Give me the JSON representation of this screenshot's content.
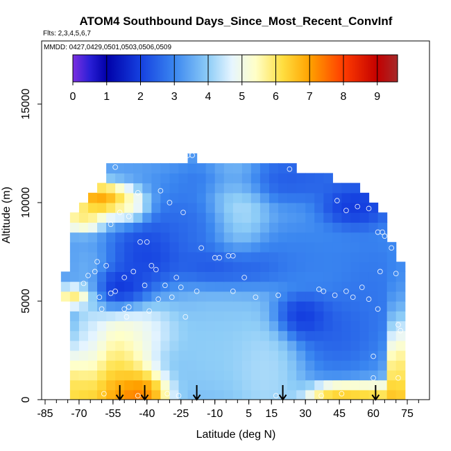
{
  "chart_data": {
    "type": "heatmap",
    "title": "ATOM4 Southbound Days_Since_Most_Recent_ConvInf",
    "flights_label": "Flts: 2,3,4,5,6,7",
    "dates_label": "MMDD: 0427,0429,0501,0503,0506,0509",
    "xlabel": "Latitude (deg N)",
    "ylabel": "Altitude (m)",
    "xlim": [
      -88,
      82
    ],
    "ylim": [
      0,
      17500
    ],
    "x_ticks": [
      -85,
      -70,
      -55,
      -40,
      -25,
      -10,
      5,
      15,
      30,
      45,
      60,
      75
    ],
    "x_tick_labels": [
      "-85",
      "-70",
      "-55",
      "-40",
      "-25",
      "-10",
      "5",
      "15",
      "30",
      "45",
      "60",
      "75"
    ],
    "x_minor_step": 5,
    "y_ticks": [
      0,
      5000,
      10000,
      15000
    ],
    "y_tick_labels": [
      "0",
      "5000",
      "10000",
      "15000"
    ],
    "colorbar": {
      "range": [
        0,
        9.6
      ],
      "ticks": [
        0,
        1,
        2,
        3,
        4,
        5,
        6,
        7,
        8,
        9
      ],
      "tick_labels": [
        "0",
        "1",
        "2",
        "3",
        "4",
        "5",
        "6",
        "7",
        "8",
        "9"
      ],
      "stops": [
        {
          "v": 0.0,
          "color": "#7b2fe0"
        },
        {
          "v": 0.5,
          "color": "#2a1fd6"
        },
        {
          "v": 1.0,
          "color": "#0000a8"
        },
        {
          "v": 2.0,
          "color": "#1540e0"
        },
        {
          "v": 3.0,
          "color": "#3a86f0"
        },
        {
          "v": 4.0,
          "color": "#8ecdf7"
        },
        {
          "v": 4.7,
          "color": "#e6f5ff"
        },
        {
          "v": 5.4,
          "color": "#ffffc8"
        },
        {
          "v": 6.2,
          "color": "#ffde40"
        },
        {
          "v": 7.0,
          "color": "#ffa200"
        },
        {
          "v": 8.0,
          "color": "#ff3c00"
        },
        {
          "v": 9.0,
          "color": "#c30000"
        },
        {
          "v": 9.6,
          "color": "#a52a2a"
        }
      ]
    },
    "profile_arrows_lat": [
      -52,
      -41,
      -18,
      20,
      61
    ],
    "field": {
      "lat_bins": [
        -72,
        -68,
        -64,
        -60,
        -56,
        -52,
        -48,
        -44,
        -40,
        -36,
        -32,
        -28,
        -24,
        -20,
        -16,
        -12,
        -8,
        -4,
        0,
        4,
        8,
        12,
        16,
        20,
        24,
        28,
        32,
        36,
        40,
        44,
        48,
        52,
        56,
        60,
        64,
        68,
        72
      ],
      "alt_bins": [
        250,
        750,
        1250,
        1750,
        2250,
        2750,
        3250,
        3750,
        4250,
        4750,
        5250,
        5750,
        6250,
        6750,
        7250,
        7750,
        8250,
        8750,
        9250,
        9750,
        10250,
        10750,
        11250,
        11750,
        12250
      ],
      "valid_lat_range_by_alt": [
        [
          -72,
          72
        ],
        [
          -72,
          72
        ],
        [
          -72,
          72
        ],
        [
          -72,
          72
        ],
        [
          -72,
          72
        ],
        [
          -72,
          72
        ],
        [
          -72,
          72
        ],
        [
          -72,
          72
        ],
        [
          -72,
          72
        ],
        [
          -72,
          72
        ],
        [
          -76,
          72
        ],
        [
          -76,
          72
        ],
        [
          -76,
          72
        ],
        [
          -72,
          72
        ],
        [
          -72,
          70
        ],
        [
          -72,
          68
        ],
        [
          -72,
          66
        ],
        [
          -72,
          66
        ],
        [
          -72,
          64
        ],
        [
          -68,
          60
        ],
        [
          -64,
          56
        ],
        [
          -60,
          52
        ],
        [
          -56,
          40
        ],
        [
          -56,
          24
        ],
        [
          -20,
          -20
        ]
      ],
      "anchors": [
        {
          "lat": -60,
          "alt": 250,
          "r_lat": 18,
          "r_alt": 1800,
          "val": 7.8
        },
        {
          "lat": -44,
          "alt": 250,
          "r_lat": 10,
          "r_alt": 900,
          "val": 8.6
        },
        {
          "lat": -52,
          "alt": 2200,
          "r_lat": 10,
          "r_alt": 1800,
          "val": 6.4
        },
        {
          "lat": -44,
          "alt": 3500,
          "r_lat": 14,
          "r_alt": 1200,
          "val": 5.2
        },
        {
          "lat": 56,
          "alt": 250,
          "r_lat": 18,
          "r_alt": 500,
          "val": 7.2
        },
        {
          "lat": 44,
          "alt": 250,
          "r_lat": 8,
          "r_alt": 400,
          "val": 6.8
        },
        {
          "lat": 70,
          "alt": 1000,
          "r_lat": 3,
          "r_alt": 3000,
          "val": 7.6
        },
        {
          "lat": -72,
          "alt": 5250,
          "r_lat": 6,
          "r_alt": 400,
          "val": 6.8
        },
        {
          "lat": -60,
          "alt": 10200,
          "r_lat": 10,
          "r_alt": 600,
          "val": 8.2
        },
        {
          "lat": -48,
          "alt": 9750,
          "r_lat": 8,
          "r_alt": 700,
          "val": 6.2
        },
        {
          "lat": -68,
          "alt": 9200,
          "r_lat": 8,
          "r_alt": 500,
          "val": 6.6
        },
        {
          "lat": -40,
          "alt": 7500,
          "r_lat": 12,
          "r_alt": 1400,
          "val": 1.6
        },
        {
          "lat": -52,
          "alt": 5500,
          "r_lat": 10,
          "r_alt": 900,
          "val": 1.2
        },
        {
          "lat": -4,
          "alt": 6800,
          "r_lat": 20,
          "r_alt": 900,
          "val": 1.8
        },
        {
          "lat": 28,
          "alt": 4200,
          "r_lat": 10,
          "r_alt": 900,
          "val": 1.3
        },
        {
          "lat": 44,
          "alt": 3500,
          "r_lat": 14,
          "r_alt": 1600,
          "val": 2.2
        },
        {
          "lat": 52,
          "alt": 9800,
          "r_lat": 12,
          "r_alt": 900,
          "val": 1.4
        },
        {
          "lat": 16,
          "alt": 11200,
          "r_lat": 30,
          "r_alt": 900,
          "val": 2.1
        },
        {
          "lat": -24,
          "alt": 8800,
          "r_lat": 20,
          "r_alt": 1400,
          "val": 2.4
        },
        {
          "lat": 0,
          "alt": 10200,
          "r_lat": 10,
          "r_alt": 2500,
          "val": 4.8
        },
        {
          "lat": -10,
          "alt": 2500,
          "r_lat": 18,
          "r_alt": 2500,
          "val": 4.2
        },
        {
          "lat": 12,
          "alt": 1500,
          "r_lat": 12,
          "r_alt": 2500,
          "val": 4.5
        },
        {
          "lat": 60,
          "alt": 5600,
          "r_lat": 14,
          "r_alt": 2500,
          "val": 2.6
        },
        {
          "lat": 30,
          "alt": 7300,
          "r_lat": 20,
          "r_alt": 1300,
          "val": 2.8
        },
        {
          "lat": -64,
          "alt": 3000,
          "r_lat": 6,
          "r_alt": 2500,
          "val": 4.6
        }
      ],
      "background_value": 3.4
    },
    "observations_lat_alt": [
      [
        -54,
        11800
      ],
      [
        -22,
        12400
      ],
      [
        -20,
        12400
      ],
      [
        23,
        11700
      ],
      [
        -44,
        10500
      ],
      [
        -34,
        10600
      ],
      [
        -30,
        10000
      ],
      [
        -52,
        9500
      ],
      [
        -48,
        9300
      ],
      [
        -56,
        8900
      ],
      [
        -24,
        9500
      ],
      [
        44,
        10100
      ],
      [
        48,
        9600
      ],
      [
        53,
        9800
      ],
      [
        58,
        9700
      ],
      [
        62,
        8500
      ],
      [
        64,
        8500
      ],
      [
        65,
        8300
      ],
      [
        68,
        7700
      ],
      [
        -43,
        8000
      ],
      [
        -40,
        8000
      ],
      [
        -16,
        7700
      ],
      [
        -4,
        7300
      ],
      [
        -8,
        7200
      ],
      [
        -10,
        7200
      ],
      [
        -2,
        7300
      ],
      [
        -62,
        7000
      ],
      [
        -58,
        6800
      ],
      [
        -63,
        6500
      ],
      [
        -66,
        6300
      ],
      [
        -68,
        5900
      ],
      [
        -50,
        6200
      ],
      [
        -46,
        6500
      ],
      [
        -38,
        6800
      ],
      [
        -36,
        6600
      ],
      [
        -27,
        6200
      ],
      [
        -32,
        5800
      ],
      [
        -41,
        5800
      ],
      [
        -54,
        5500
      ],
      [
        -56,
        5400
      ],
      [
        -61,
        5200
      ],
      [
        -60,
        4600
      ],
      [
        -50,
        4600
      ],
      [
        -48,
        4700
      ],
      [
        -49,
        4200
      ],
      [
        -39,
        4500
      ],
      [
        -35,
        5100
      ],
      [
        -29,
        5200
      ],
      [
        -25,
        5700
      ],
      [
        -18,
        5500
      ],
      [
        3,
        6200
      ],
      [
        8,
        5200
      ],
      [
        -2,
        5500
      ],
      [
        18,
        5300
      ],
      [
        36,
        5600
      ],
      [
        38,
        5500
      ],
      [
        43,
        5300
      ],
      [
        48,
        5500
      ],
      [
        51,
        5200
      ],
      [
        55,
        5700
      ],
      [
        58,
        5100
      ],
      [
        63,
        6500
      ],
      [
        62,
        4600
      ],
      [
        70,
        6400
      ],
      [
        71,
        3800
      ],
      [
        72,
        3500
      ],
      [
        60,
        2200
      ],
      [
        60,
        1100
      ],
      [
        71,
        1100
      ],
      [
        -23,
        4200
      ],
      [
        -59,
        300
      ],
      [
        -44,
        200
      ],
      [
        -31,
        300
      ],
      [
        -26,
        200
      ],
      [
        17,
        200
      ],
      [
        37,
        200
      ],
      [
        46,
        300
      ]
    ]
  }
}
